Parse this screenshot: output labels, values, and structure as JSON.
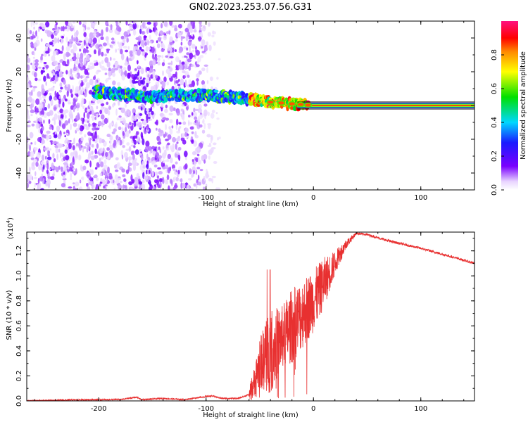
{
  "figure": {
    "title": "GN02.2023.253.07.56.G31"
  },
  "chart_data": [
    {
      "type": "heatmap",
      "title": "",
      "xlabel": "Height of straight line (km)",
      "ylabel": "Frequency (Hz)",
      "xlim": [
        -267,
        150
      ],
      "ylim": [
        -50,
        50
      ],
      "xticks": [
        -200,
        -100,
        0,
        100
      ],
      "xtick_labels": [
        "-200",
        "-100",
        "0",
        "100"
      ],
      "yticks": [
        -40,
        -20,
        0,
        20,
        40
      ],
      "ytick_labels": [
        "-40",
        "-20",
        "0",
        "20",
        "40"
      ],
      "grid": false,
      "colorbar": {
        "label": "Normalized spectral amplitude",
        "range": [
          0,
          1
        ],
        "ticks": [
          0,
          0.2,
          0.4,
          0.6,
          0.8
        ],
        "tick_labels": [
          "0.0",
          "0.2",
          "0.4",
          "0.6",
          "0.8"
        ],
        "colormap": "rainbow (purple-blue-cyan-green-yellow-red-magenta)"
      },
      "features": {
        "noise_region_x": [
          -267,
          -80
        ],
        "dominant_frequency_track": [
          {
            "x": -200,
            "y": 8
          },
          {
            "x": -180,
            "y": 7
          },
          {
            "x": -160,
            "y": 5
          },
          {
            "x": -130,
            "y": 6
          },
          {
            "x": -100,
            "y": 6
          },
          {
            "x": -80,
            "y": 5
          },
          {
            "x": -60,
            "y": 4
          },
          {
            "x": -40,
            "y": 2
          },
          {
            "x": -20,
            "y": 1
          },
          {
            "x": 0,
            "y": 0
          },
          {
            "x": 50,
            "y": 0
          },
          {
            "x": 100,
            "y": 0
          },
          {
            "x": 150,
            "y": 0
          }
        ],
        "steady_band_x": [
          0,
          150
        ],
        "steady_band_frequency": 0
      }
    },
    {
      "type": "line",
      "title": "",
      "xlabel": "Height of straight line (km)",
      "ylabel": "SNR (10 * v/v)",
      "y_scale_label": "(x10",
      "y_scale_exponent": "4",
      "y_scale_suffix": ")",
      "xlim": [
        -267,
        150
      ],
      "ylim": [
        0,
        1.35
      ],
      "xticks": [
        -200,
        -100,
        0,
        100
      ],
      "xtick_labels": [
        "-200",
        "-100",
        "0",
        "100"
      ],
      "yticks": [
        0,
        0.2,
        0.4,
        0.6,
        0.8,
        1.0,
        1.2
      ],
      "ytick_labels": [
        "0.0",
        "0.2",
        "0.4",
        "0.6",
        "0.8",
        "1.0",
        "1.2"
      ],
      "grid": false,
      "color": "#e83030",
      "series": [
        {
          "x": [
            -267,
            -240,
            -210,
            -180,
            -165,
            -160,
            -140,
            -120,
            -105,
            -95,
            -85,
            -70,
            -60,
            -55,
            -50,
            -45,
            -40,
            -35,
            -30,
            -25,
            -20,
            -10,
            0,
            10,
            20,
            30,
            40,
            50,
            70,
            100,
            130,
            150
          ],
          "y": [
            0.0,
            0.005,
            0.01,
            0.01,
            0.03,
            0.01,
            0.02,
            0.01,
            0.03,
            0.04,
            0.02,
            0.02,
            0.05,
            0.15,
            0.3,
            0.35,
            0.4,
            0.45,
            0.5,
            0.55,
            0.6,
            0.7,
            0.8,
            0.95,
            1.1,
            1.25,
            1.34,
            1.33,
            1.28,
            1.22,
            1.15,
            1.1
          ]
        }
      ],
      "noise_envelope": [
        {
          "x": -60,
          "amp": 0.05
        },
        {
          "x": -50,
          "amp": 0.2
        },
        {
          "x": -40,
          "amp": 0.35
        },
        {
          "x": -30,
          "amp": 0.25
        },
        {
          "x": -20,
          "amp": 0.3
        },
        {
          "x": -10,
          "amp": 0.28
        },
        {
          "x": 0,
          "amp": 0.25
        },
        {
          "x": 10,
          "amp": 0.2
        },
        {
          "x": 20,
          "amp": 0.1
        },
        {
          "x": 30,
          "amp": 0.04
        },
        {
          "x": 40,
          "amp": 0.01
        },
        {
          "x": 150,
          "amp": 0.01
        }
      ]
    }
  ]
}
